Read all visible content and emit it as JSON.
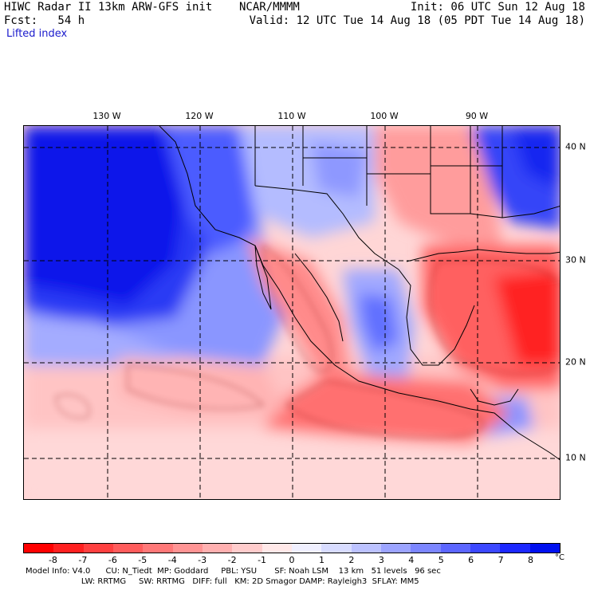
{
  "header": {
    "title_left": "HIWC Radar II 13km ARW-GFS init    NCAR/MMMM",
    "init_right": "Init: 06 UTC Sun 12 Aug 18",
    "fcst_left": "Fcst:   54 h",
    "valid_right": "Valid: 12 UTC Tue 14 Aug 18 (05 PDT Tue 14 Aug 18)",
    "field_name": "Lifted index"
  },
  "map": {
    "lon_labels": [
      "130 W",
      "120 W",
      "110 W",
      "100 W",
      "90 W"
    ],
    "lat_labels": [
      "40 N",
      "30 N",
      "20 N",
      "10 N"
    ]
  },
  "colorbar": {
    "ticks": [
      "-8",
      "-7",
      "-6",
      "-5",
      "-4",
      "-3",
      "-2",
      "-1",
      "0",
      "1",
      "2",
      "3",
      "4",
      "5",
      "6",
      "7",
      "8"
    ],
    "unit": "°C",
    "colors": [
      "#ff0000",
      "#ff2020",
      "#ff4040",
      "#ff5c5c",
      "#ff7878",
      "#ff9494",
      "#ffb0b0",
      "#ffcccc",
      "#ffe8e8",
      "#f0f0ff",
      "#d8dcff",
      "#bcc2ff",
      "#9ca4ff",
      "#7c86ff",
      "#5c66ff",
      "#3c48ff",
      "#1c28ff",
      "#0010f0"
    ]
  },
  "footer": {
    "line1": "Model Info: V4.0      CU: N_Tiedt  MP: Goddard     PBL: YSU       SF: Noah LSM    13 km   51 levels   96 sec",
    "line2": "                      LW: RRTMG     SW: RRTMG   DIFF: full   KM: 2D Smagor DAMP: Rayleigh3  SFLAY: MM5"
  }
}
